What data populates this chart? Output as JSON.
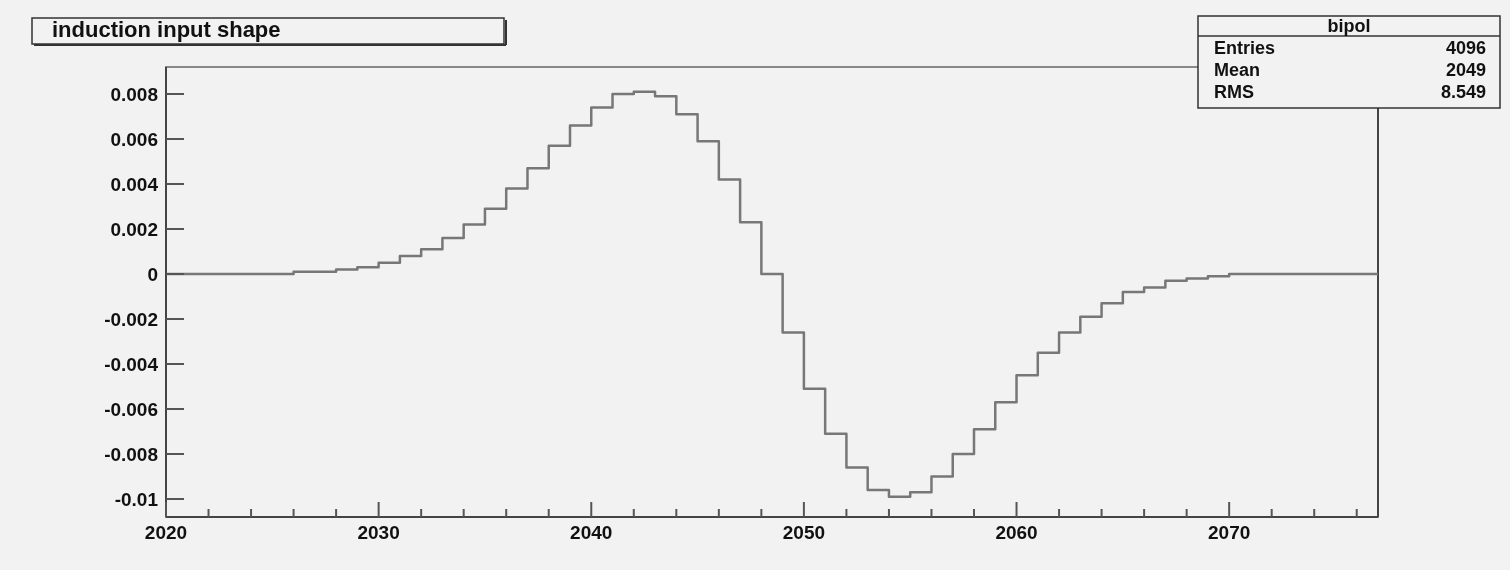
{
  "chart_data": {
    "type": "histogram",
    "title": "induction input shape",
    "annotations": [
      "bipol",
      "Entries",
      "4096",
      "Mean",
      "2049",
      "RMS",
      "8.549"
    ],
    "bins": [
      2020,
      2021,
      2022,
      2023,
      2024,
      2025,
      2026,
      2027,
      2028,
      2029,
      2030,
      2031,
      2032,
      2033,
      2034,
      2035,
      2036,
      2037,
      2038,
      2039,
      2040,
      2041,
      2042,
      2043,
      2044,
      2045,
      2046,
      2047,
      2048,
      2049,
      2050,
      2051,
      2052,
      2053,
      2054,
      2055,
      2056,
      2057,
      2058,
      2059,
      2060,
      2061,
      2062,
      2063,
      2064,
      2065,
      2066,
      2067,
      2068,
      2069,
      2070,
      2071,
      2072,
      2073,
      2074,
      2075,
      2076,
      2077
    ],
    "values": [
      0,
      0,
      0,
      0,
      0,
      0,
      0.0001,
      0.0001,
      0.0002,
      0.0003,
      0.0005,
      0.0008,
      0.0011,
      0.0016,
      0.0022,
      0.0029,
      0.0038,
      0.0047,
      0.0057,
      0.0066,
      0.0074,
      0.008,
      0.0081,
      0.0079,
      0.0071,
      0.0059,
      0.0042,
      0.0023,
      0,
      -0.0026,
      -0.0051,
      -0.0071,
      -0.0086,
      -0.0096,
      -0.0099,
      -0.0097,
      -0.009,
      -0.008,
      -0.0069,
      -0.0057,
      -0.0045,
      -0.0035,
      -0.0026,
      -0.0019,
      -0.0013,
      -0.0008,
      -0.0006,
      -0.0003,
      -0.0002,
      -0.0001,
      0,
      0,
      0,
      0,
      0,
      0,
      0
    ],
    "color": "#777777",
    "xlim": [
      2020,
      2077
    ],
    "xticks": [
      2020,
      {
        "value": 2022,
        "label": null
      },
      {
        "value": 2024,
        "label": null
      },
      {
        "value": 2026,
        "label": null
      },
      {
        "value": 2028,
        "label": null
      },
      2030,
      {
        "value": 2032,
        "label": null
      },
      {
        "value": 2034,
        "label": null
      },
      {
        "value": 2036,
        "label": null
      },
      {
        "value": 2038,
        "label": null
      },
      2040,
      {
        "value": 2042,
        "label": null
      },
      {
        "value": 2044,
        "label": null
      },
      {
        "value": 2046,
        "label": null
      },
      {
        "value": 2048,
        "label": null
      },
      2050,
      {
        "value": 2052,
        "label": null
      },
      {
        "value": 2054,
        "label": null
      },
      {
        "value": 2056,
        "label": null
      },
      {
        "value": 2058,
        "label": null
      },
      2060,
      {
        "value": 2062,
        "label": null
      },
      {
        "value": 2064,
        "label": null
      },
      {
        "value": 2066,
        "label": null
      },
      {
        "value": 2068,
        "label": null
      },
      2070,
      {
        "value": 2072,
        "label": null
      },
      {
        "value": 2074,
        "label": null
      },
      {
        "value": 2076,
        "label": null
      }
    ],
    "ylim": [
      -0.0108,
      0.0092
    ],
    "yticks": [
      -0.01,
      -0.008,
      -0.006,
      -0.004,
      -0.002,
      0,
      0.002,
      0.004,
      0.006,
      0.008
    ]
  }
}
